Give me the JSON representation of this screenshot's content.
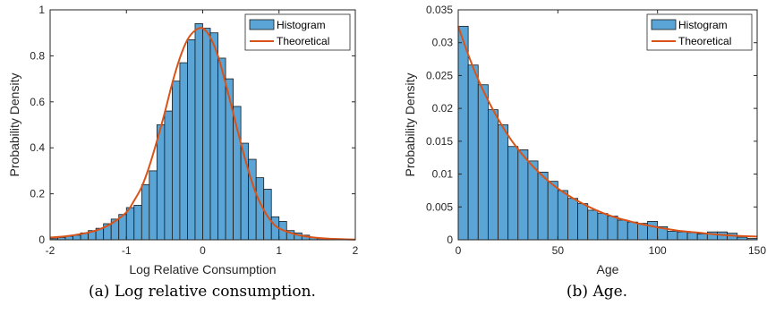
{
  "colors": {
    "bar_fill": "#5aa5d6",
    "bar_edge": "#1a1a1a",
    "curve": "#d95319",
    "axis": "#262626"
  },
  "chart_data": [
    {
      "type": "bar",
      "caption": "(a) Log relative consumption.",
      "xlabel": "Log Relative Consumption",
      "ylabel": "Probability Density",
      "xlim": [
        -2,
        2
      ],
      "ylim": [
        0,
        1
      ],
      "xticks": [
        "-2",
        "-1",
        "0",
        "1",
        "2"
      ],
      "yticks": [
        "0",
        "0.2",
        "0.4",
        "0.6",
        "0.8",
        "1"
      ],
      "xtick_values": [
        -2,
        -1,
        0,
        1,
        2
      ],
      "ytick_values": [
        0,
        0.2,
        0.4,
        0.6,
        0.8,
        1
      ],
      "legend": {
        "position": "top-right",
        "entries": [
          "Histogram",
          "Theoretical"
        ]
      },
      "series": [
        {
          "name": "Histogram",
          "bin_edges": [
            -2,
            -1.9,
            -1.8,
            -1.7,
            -1.6,
            -1.5,
            -1.4,
            -1.3,
            -1.2,
            -1.1,
            -1.0,
            -0.9,
            -0.8,
            -0.7,
            -0.6,
            -0.5,
            -0.4,
            -0.3,
            -0.2,
            -0.1,
            0.0,
            0.1,
            0.2,
            0.3,
            0.4,
            0.5,
            0.6,
            0.7,
            0.8,
            0.9,
            1.0,
            1.1,
            1.2,
            1.3,
            1.4,
            1.5,
            1.6,
            1.7,
            1.8,
            1.9,
            2.0
          ],
          "values": [
            0.005,
            0.01,
            0.015,
            0.02,
            0.03,
            0.04,
            0.05,
            0.07,
            0.09,
            0.11,
            0.14,
            0.15,
            0.24,
            0.3,
            0.5,
            0.56,
            0.69,
            0.77,
            0.87,
            0.94,
            0.92,
            0.9,
            0.79,
            0.7,
            0.58,
            0.42,
            0.35,
            0.27,
            0.22,
            0.1,
            0.08,
            0.04,
            0.03,
            0.02,
            0.01,
            0.005,
            0.003,
            0.002,
            0.001,
            0.001
          ]
        },
        {
          "name": "Theoretical",
          "x": [
            -2.0,
            -1.8,
            -1.6,
            -1.4,
            -1.2,
            -1.0,
            -0.9,
            -0.8,
            -0.7,
            -0.6,
            -0.5,
            -0.4,
            -0.3,
            -0.2,
            -0.1,
            0.0,
            0.1,
            0.2,
            0.3,
            0.4,
            0.5,
            0.6,
            0.7,
            0.8,
            0.9,
            1.0,
            1.2,
            1.4,
            1.6,
            1.8,
            2.0
          ],
          "y": [
            0.01,
            0.015,
            0.025,
            0.04,
            0.07,
            0.12,
            0.17,
            0.23,
            0.32,
            0.43,
            0.55,
            0.68,
            0.79,
            0.87,
            0.91,
            0.92,
            0.88,
            0.8,
            0.68,
            0.55,
            0.42,
            0.3,
            0.2,
            0.13,
            0.08,
            0.05,
            0.025,
            0.012,
            0.006,
            0.003,
            0.001
          ]
        }
      ]
    },
    {
      "type": "bar",
      "caption": "(b) Age.",
      "xlabel": "Age",
      "ylabel": "Probability Density",
      "xlim": [
        0,
        150
      ],
      "ylim": [
        0,
        0.035
      ],
      "xticks": [
        "0",
        "50",
        "100",
        "150"
      ],
      "yticks": [
        "0",
        "0.005",
        "0.01",
        "0.015",
        "0.02",
        "0.025",
        "0.03",
        "0.035"
      ],
      "xtick_values": [
        0,
        50,
        100,
        150
      ],
      "ytick_values": [
        0,
        0.005,
        0.01,
        0.015,
        0.02,
        0.025,
        0.03,
        0.035
      ],
      "legend": {
        "position": "top-right",
        "entries": [
          "Histogram",
          "Theoretical"
        ]
      },
      "series": [
        {
          "name": "Histogram",
          "bin_edges": [
            0,
            5,
            10,
            15,
            20,
            25,
            30,
            35,
            40,
            45,
            50,
            55,
            60,
            65,
            70,
            75,
            80,
            85,
            90,
            95,
            100,
            105,
            110,
            115,
            120,
            125,
            130,
            135,
            140,
            145,
            150
          ],
          "values": [
            0.0325,
            0.0266,
            0.0236,
            0.0198,
            0.0175,
            0.0142,
            0.0137,
            0.012,
            0.0103,
            0.0089,
            0.0075,
            0.0063,
            0.0055,
            0.0045,
            0.004,
            0.0036,
            0.003,
            0.0027,
            0.0025,
            0.0028,
            0.002,
            0.0013,
            0.0012,
            0.0011,
            0.0009,
            0.0012,
            0.0012,
            0.001,
            0.0004,
            0.0002
          ]
        },
        {
          "name": "Theoretical",
          "x": [
            0,
            5,
            10,
            15,
            20,
            25,
            30,
            35,
            40,
            45,
            50,
            55,
            60,
            65,
            70,
            75,
            80,
            85,
            90,
            95,
            100,
            110,
            120,
            130,
            140,
            150
          ],
          "y": [
            0.0325,
            0.0282,
            0.0244,
            0.0212,
            0.0184,
            0.0159,
            0.0138,
            0.012,
            0.0104,
            0.009,
            0.0078,
            0.0068,
            0.0059,
            0.0051,
            0.0044,
            0.0038,
            0.0033,
            0.0029,
            0.0025,
            0.0022,
            0.0019,
            0.0014,
            0.0011,
            0.0008,
            0.0006,
            0.0005
          ]
        }
      ]
    }
  ]
}
